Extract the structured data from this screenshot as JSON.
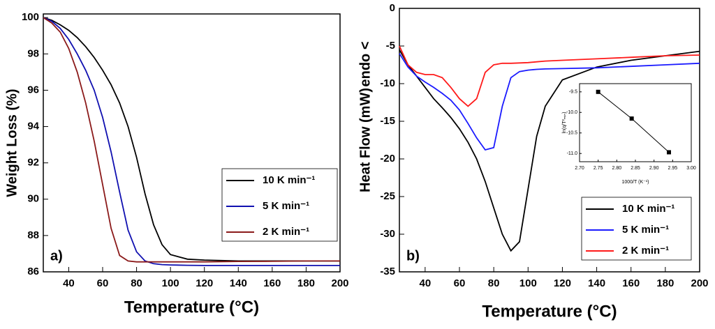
{
  "chart_data": [
    {
      "type": "line",
      "panel_label": "a)",
      "xlabel": "Temperature (°C)",
      "ylabel": "Weight Loss (%)",
      "x": [
        25,
        30,
        35,
        40,
        45,
        50,
        55,
        60,
        65,
        70,
        75,
        80,
        85,
        90,
        95,
        100,
        110,
        120,
        140,
        160,
        180,
        200
      ],
      "xlim": [
        25,
        200
      ],
      "xticks": [
        40,
        60,
        80,
        100,
        120,
        140,
        160,
        180,
        200
      ],
      "ylim": [
        86,
        100.2
      ],
      "yticks": [
        86,
        88,
        90,
        92,
        94,
        96,
        98,
        100
      ],
      "series": [
        {
          "name": "10 K min⁻¹",
          "color": "#000000",
          "values": [
            100,
            99.85,
            99.6,
            99.3,
            98.9,
            98.4,
            97.8,
            97.1,
            96.3,
            95.3,
            94.0,
            92.3,
            90.3,
            88.6,
            87.5,
            86.95,
            86.7,
            86.65,
            86.6,
            86.6,
            86.6,
            86.6
          ]
        },
        {
          "name": "5 K min⁻¹",
          "color": "#1010b0",
          "values": [
            100,
            99.8,
            99.4,
            98.8,
            98.0,
            97.1,
            96.0,
            94.5,
            92.6,
            90.4,
            88.3,
            87.1,
            86.6,
            86.45,
            86.4,
            86.38,
            86.36,
            86.35,
            86.35,
            86.35,
            86.35,
            86.35
          ]
        },
        {
          "name": "2 K min⁻¹",
          "color": "#8b1a1a",
          "values": [
            100,
            99.7,
            99.2,
            98.3,
            97.0,
            95.3,
            93.2,
            90.8,
            88.4,
            86.9,
            86.6,
            86.55,
            86.55,
            86.55,
            86.55,
            86.55,
            86.55,
            86.55,
            86.57,
            86.58,
            86.6,
            86.6
          ]
        }
      ]
    },
    {
      "type": "line",
      "panel_label": "b)",
      "xlabel": "Temperature (°C)",
      "ylabel": "Heat Flow (mW)",
      "ylabel_note": "endo <",
      "x": [
        25,
        30,
        35,
        40,
        45,
        50,
        55,
        60,
        65,
        70,
        75,
        80,
        85,
        90,
        95,
        100,
        105,
        110,
        120,
        140,
        160,
        180,
        200
      ],
      "xlim": [
        25,
        200
      ],
      "xticks": [
        40,
        60,
        80,
        100,
        120,
        140,
        160,
        180,
        200
      ],
      "ylim": [
        -35,
        0
      ],
      "yticks": [
        -35,
        -30,
        -25,
        -20,
        -15,
        -10,
        -5,
        0
      ],
      "series": [
        {
          "name": "10 K min⁻¹",
          "color": "#000000",
          "values": [
            -5.5,
            -7.5,
            -9,
            -10.5,
            -12,
            -13.2,
            -14.5,
            -16,
            -17.8,
            -20,
            -23,
            -26.5,
            -30,
            -32.2,
            -31,
            -24,
            -17,
            -13,
            -9.5,
            -7.8,
            -6.9,
            -6.3,
            -5.7
          ]
        },
        {
          "name": "5 K min⁻¹",
          "color": "#1a1aff",
          "values": [
            -6,
            -7.8,
            -9,
            -9.8,
            -10.5,
            -11.3,
            -12.2,
            -13.5,
            -15.3,
            -17.2,
            -18.8,
            -18.5,
            -13,
            -9.2,
            -8.4,
            -8.2,
            -8.1,
            -8.05,
            -8,
            -7.9,
            -7.7,
            -7.5,
            -7.3
          ]
        },
        {
          "name": "2 K min⁻¹",
          "color": "#ff1a1a",
          "values": [
            -5,
            -7.5,
            -8.5,
            -8.8,
            -8.8,
            -9.2,
            -10.5,
            -12,
            -13,
            -12,
            -8.5,
            -7.5,
            -7.3,
            -7.3,
            -7.25,
            -7.2,
            -7.1,
            -7.0,
            -6.9,
            -6.7,
            -6.5,
            -6.3,
            -6.2
          ]
        }
      ]
    },
    {
      "type": "line",
      "markers": true,
      "xlabel": "1000/T (K⁻¹)",
      "ylabel": "ln(q/T²ₘᵢₙ)",
      "x": [
        2.75,
        2.84,
        2.94
      ],
      "xlim": [
        2.7,
        3.0
      ],
      "xticks": [
        {
          "value": 2.7,
          "label": "2.70"
        },
        {
          "value": 2.75,
          "label": "2.75"
        },
        {
          "value": 2.8,
          "label": "2.80"
        },
        {
          "value": 2.85,
          "label": "2.85"
        },
        {
          "value": 2.9,
          "label": "2.90"
        },
        {
          "value": 2.95,
          "label": "2.95"
        },
        {
          "value": 3.0,
          "label": "3.00"
        }
      ],
      "ylim": [
        -11.2,
        -9.3
      ],
      "yticks": [
        {
          "value": -9.5,
          "label": "-9.5"
        },
        {
          "value": -10,
          "label": "-10.0"
        },
        {
          "value": -10.5,
          "label": "-10.5"
        },
        {
          "value": -11,
          "label": "-11.0"
        }
      ],
      "series": [
        {
          "color": "#000000",
          "values": [
            -9.5,
            -10.15,
            -10.97
          ]
        }
      ]
    }
  ]
}
